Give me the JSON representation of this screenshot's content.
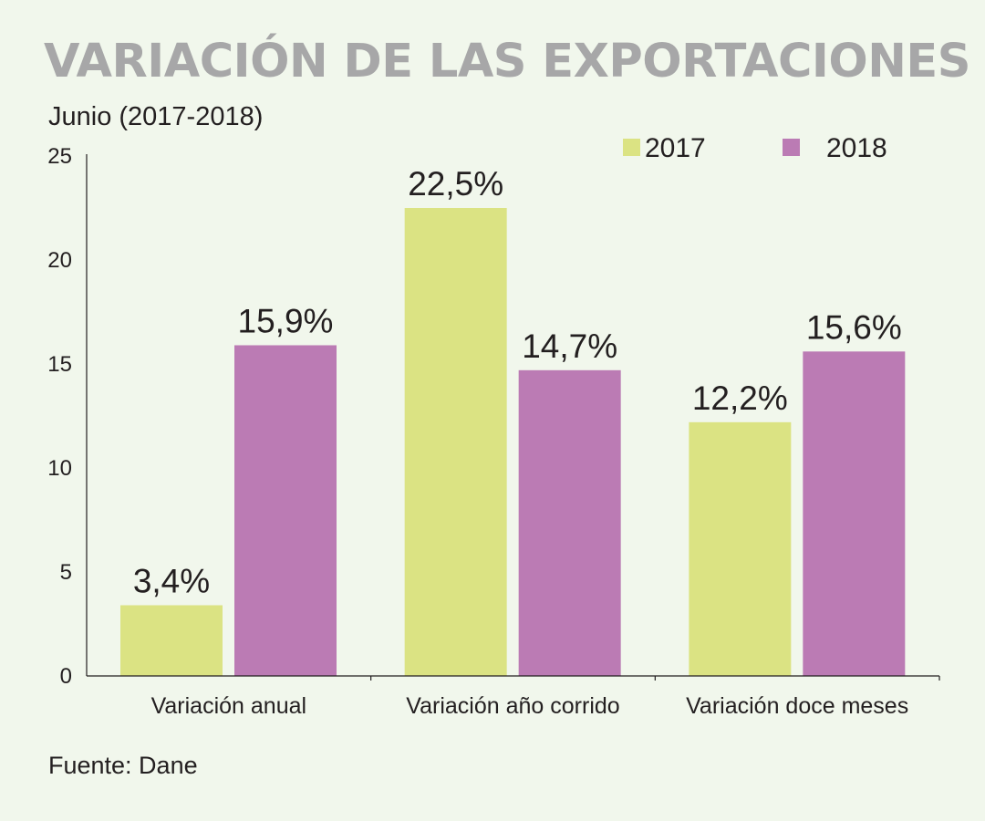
{
  "chart_data": {
    "type": "bar",
    "title": "VARIACIÓN DE LAS EXPORTACIONES",
    "subtitle": "Junio (2017-2018)",
    "source": "Fuente: Dane",
    "categories": [
      "Variación anual",
      "Variación año corrido",
      "Variación doce meses"
    ],
    "series": [
      {
        "name": "2017",
        "color": "#dbe383",
        "values": [
          3.4,
          22.5,
          12.2
        ],
        "labels": [
          "3,4%",
          "22,5%",
          "12,2%"
        ]
      },
      {
        "name": "2018",
        "color": "#bb7bb4",
        "values": [
          15.9,
          14.7,
          15.6
        ],
        "labels": [
          "15,9%",
          "14,7%",
          "15,6%"
        ]
      }
    ],
    "ylim": [
      0,
      25
    ],
    "yticks": [
      0,
      5,
      10,
      15,
      20,
      25
    ],
    "legend_position": "top-right",
    "grid": false
  }
}
